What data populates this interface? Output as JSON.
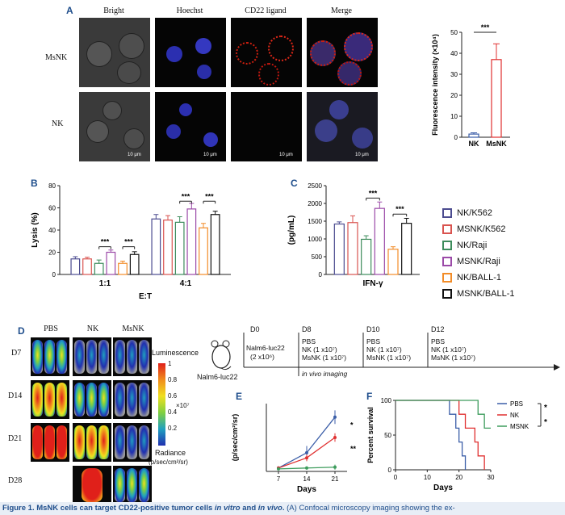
{
  "panel_a": {
    "label": "A",
    "columns": [
      "Bright",
      "Hoechst",
      "CD22 ligand",
      "Merge"
    ],
    "rows": [
      "MsNK",
      "NK"
    ],
    "scale_bar": "10 μm",
    "sig": "***",
    "colors": {
      "nk": "#3b5ea8",
      "msnk": "#e03030"
    }
  },
  "panel_b": {
    "label": "B",
    "sig": [
      "***",
      "***",
      "***",
      "***"
    ]
  },
  "panel_c": {
    "label": "C",
    "sig": [
      "***",
      "***"
    ]
  },
  "legend": [
    "NK/K562",
    "MSNK/K562",
    "NK/Raji",
    "MSNK/Raji",
    "NK/BALL-1",
    "MSNK/BALL-1"
  ],
  "legend_colors": [
    "#4b4b8f",
    "#d9534f",
    "#3d8c5c",
    "#9b4aa8",
    "#f28c28",
    "#111111"
  ],
  "panel_d": {
    "label": "D",
    "columns": [
      "PBS",
      "NK",
      "MsNK"
    ],
    "days": [
      "D7",
      "D14",
      "D21",
      "D28"
    ],
    "colorbar_title": "Luminescence",
    "colorbar_ticks": [
      "1",
      "0.8",
      "0.6",
      "0.4",
      "0.2"
    ],
    "colorbar_exp": "×10⁷",
    "radiance": "Radiance",
    "radiance_unit": "(p/sec/cm²/sr)",
    "timeline": {
      "mouse_label": "Nalm6-luc22",
      "d0": "D0",
      "d0_line1": "Nalm6-luc22",
      "d0_line2": "(2 x10⁶)",
      "d8": "D8",
      "d10": "D10",
      "d12": "D12",
      "pbs": "PBS",
      "nk_dose": "NK (1 x10⁷)",
      "msnk_dose": "MsNK (1 x10⁷)",
      "imaging": "in vivo imaging"
    }
  },
  "panel_e": {
    "label": "E",
    "sig": [
      "*",
      "**"
    ]
  },
  "panel_f": {
    "label": "F",
    "sig": [
      "*",
      "*"
    ]
  },
  "caption": {
    "bold": "Figure 1. MsNK cells can target CD22-positive tumor cells ",
    "it1": "in vitro",
    "and": " and ",
    "it2": "in vivo",
    "dot": ".",
    "rest": " (A) Confocal microscopy imaging showing the ex-"
  },
  "chart_data": [
    {
      "type": "bar",
      "panel": "A",
      "categories": [
        "NK",
        "MsNK"
      ],
      "values": [
        1.5,
        37
      ],
      "errors": [
        0.6,
        7.5
      ],
      "ylabel": "Fluorescence intensity (×10⁴)",
      "ylim": [
        0,
        50
      ],
      "yticks": [
        "0",
        "10",
        "20",
        "30",
        "40",
        "50"
      ]
    },
    {
      "type": "bar",
      "panel": "B",
      "categories": [
        "1:1",
        "4:1"
      ],
      "xlabel": "E:T",
      "ylabel": "Lysis (%)",
      "ylim": [
        0,
        80
      ],
      "yticks": [
        "0",
        "20",
        "40",
        "60",
        "80"
      ],
      "series": [
        {
          "name": "NK/K562",
          "values": [
            14,
            50
          ],
          "errors": [
            2,
            4
          ]
        },
        {
          "name": "MSNK/K562",
          "values": [
            14,
            49
          ],
          "errors": [
            1.5,
            4
          ]
        },
        {
          "name": "NK/Raji",
          "values": [
            10,
            47
          ],
          "errors": [
            3,
            5
          ]
        },
        {
          "name": "MSNK/Raji",
          "values": [
            20,
            59
          ],
          "errors": [
            2,
            5
          ]
        },
        {
          "name": "NK/BALL-1",
          "values": [
            10,
            42
          ],
          "errors": [
            2,
            4
          ]
        },
        {
          "name": "MSNK/BALL-1",
          "values": [
            18,
            54
          ],
          "errors": [
            2.5,
            3
          ]
        }
      ]
    },
    {
      "type": "bar",
      "panel": "C",
      "categories": [
        "IFN-γ"
      ],
      "ylabel": "(pg/mL)",
      "ylim": [
        0,
        2500
      ],
      "yticks": [
        "0",
        "500",
        "1000",
        "1500",
        "2000",
        "2500"
      ],
      "series": [
        {
          "name": "NK/K562",
          "values": [
            1420
          ],
          "errors": [
            60
          ]
        },
        {
          "name": "MSNK/K562",
          "values": [
            1460
          ],
          "errors": [
            190
          ]
        },
        {
          "name": "NK/Raji",
          "values": [
            990
          ],
          "errors": [
            100
          ]
        },
        {
          "name": "MSNK/Raji",
          "values": [
            1860
          ],
          "errors": [
            180
          ]
        },
        {
          "name": "NK/BALL-1",
          "values": [
            710
          ],
          "errors": [
            70
          ]
        },
        {
          "name": "MSNK/BALL-1",
          "values": [
            1440
          ],
          "errors": [
            140
          ]
        }
      ]
    },
    {
      "type": "line",
      "panel": "E",
      "x": [
        7,
        14,
        21
      ],
      "xlabel": "Days",
      "ylabel": "(p/sec/cm²/sr)",
      "ylim": [
        0,
        80
      ],
      "xticks": [
        "7",
        "14",
        "21"
      ],
      "series": [
        {
          "name": "PBS",
          "values": [
            4,
            22,
            64
          ],
          "errors": [
            1,
            8,
            8
          ],
          "color": "#3b5ea8"
        },
        {
          "name": "NK",
          "values": [
            4,
            16,
            40
          ],
          "errors": [
            1,
            4,
            5
          ],
          "color": "#e03030"
        },
        {
          "name": "MSNK",
          "values": [
            3,
            4,
            5
          ],
          "errors": [
            1,
            2,
            3
          ],
          "color": "#3d9c5c"
        }
      ]
    },
    {
      "type": "line",
      "panel": "F",
      "xlabel": "Days",
      "ylabel": "Percent survival",
      "ylim": [
        0,
        100
      ],
      "xlim": [
        0,
        30
      ],
      "xticks": [
        "0",
        "10",
        "20",
        "30"
      ],
      "yticks": [
        "0",
        "50",
        "100"
      ],
      "series": [
        {
          "name": "PBS",
          "color": "#3b5ea8",
          "points": [
            [
              0,
              100
            ],
            [
              17,
              100
            ],
            [
              17,
              80
            ],
            [
              19,
              80
            ],
            [
              19,
              60
            ],
            [
              20,
              60
            ],
            [
              20,
              40
            ],
            [
              21,
              40
            ],
            [
              21,
              20
            ],
            [
              22,
              20
            ],
            [
              22,
              0
            ]
          ]
        },
        {
          "name": "NK",
          "color": "#e03030",
          "points": [
            [
              0,
              100
            ],
            [
              20,
              100
            ],
            [
              20,
              80
            ],
            [
              22,
              80
            ],
            [
              22,
              60
            ],
            [
              25,
              60
            ],
            [
              25,
              40
            ],
            [
              26,
              40
            ],
            [
              26,
              20
            ],
            [
              28,
              20
            ],
            [
              28,
              0
            ]
          ]
        },
        {
          "name": "MSNK",
          "color": "#3d9c5c",
          "points": [
            [
              0,
              100
            ],
            [
              26,
              100
            ],
            [
              26,
              80
            ],
            [
              28,
              80
            ],
            [
              28,
              60
            ],
            [
              30,
              60
            ]
          ]
        }
      ]
    }
  ]
}
